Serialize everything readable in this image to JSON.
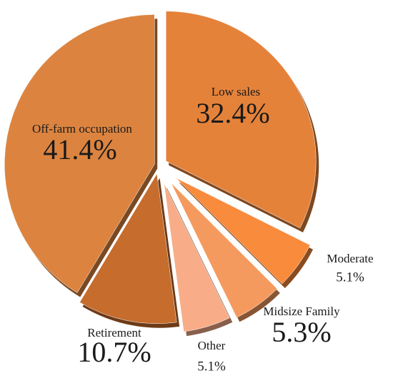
{
  "chart_data": {
    "type": "pie",
    "categories": [
      "Low sales",
      "Moderate",
      "Midsize Family",
      "Other",
      "Retirement",
      "Off-farm occupation"
    ],
    "values": [
      32.4,
      5.1,
      5.3,
      5.1,
      10.7,
      41.4
    ],
    "value_labels": [
      "32.4%",
      "5.1%",
      "5.3%",
      "5.1%",
      "10.7%",
      "41.4%"
    ],
    "colors": [
      "#e5823a",
      "#f98b3c",
      "#f59a5e",
      "#f8ad88",
      "#c66c2c",
      "#dc843f"
    ]
  }
}
